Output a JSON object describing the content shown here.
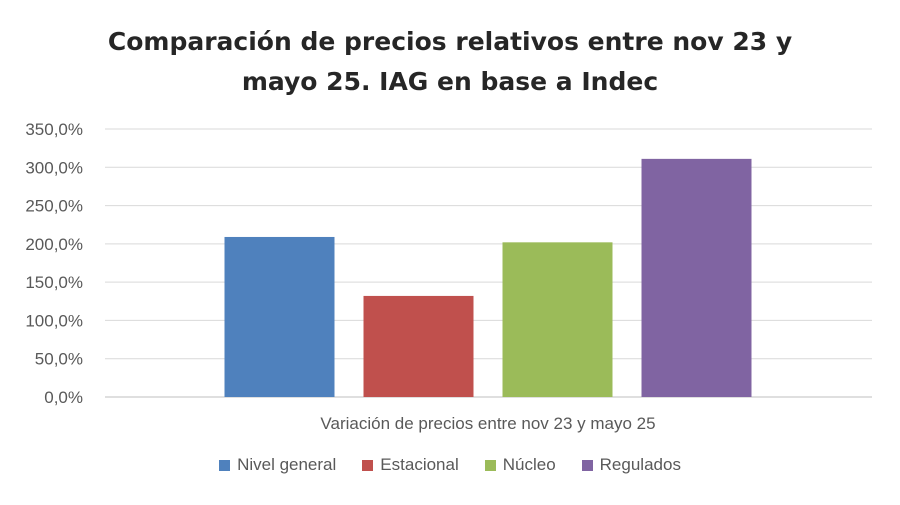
{
  "chart_data": {
    "type": "bar",
    "title": "Comparación de precios relativos entre nov 23 y mayo 25. IAG en base a Indec",
    "title_lines": [
      "Comparación de precios relativos entre nov 23 y",
      "mayo 25. IAG en base a Indec"
    ],
    "categories": [
      "Variación de precios entre nov 23 y mayo 25"
    ],
    "series": [
      {
        "name": "Nivel general",
        "values": [
          209.0
        ],
        "color": "#4F81BD"
      },
      {
        "name": "Estacional",
        "values": [
          132.0
        ],
        "color": "#C0504D"
      },
      {
        "name": "Núcleo",
        "values": [
          202.0
        ],
        "color": "#9BBB59"
      },
      {
        "name": "Regulados",
        "values": [
          311.0
        ],
        "color": "#8064A2"
      }
    ],
    "ylim": [
      0,
      350
    ],
    "yticks": [
      0,
      50,
      100,
      150,
      200,
      250,
      300,
      350
    ],
    "ytick_labels": [
      "0,0%",
      "50,0%",
      "100,0%",
      "150,0%",
      "200,0%",
      "250,0%",
      "300,0%",
      "350,0%"
    ],
    "grid": true,
    "legend_position": "bottom",
    "gridline_color": "#D9D9D9",
    "axis_color": "#BFBFBF"
  }
}
